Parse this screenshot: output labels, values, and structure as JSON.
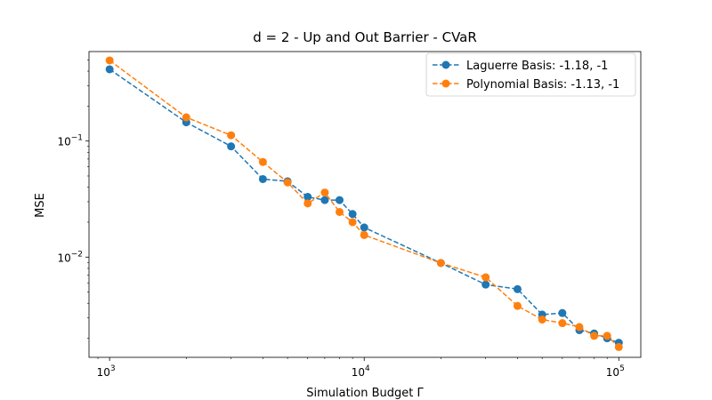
{
  "chart_data": {
    "type": "line",
    "title": "d = 2 - Up and Out Barrier - CVaR",
    "xlabel": "Simulation Budget Γ",
    "ylabel": "MSE",
    "x_scale": "log",
    "y_scale": "log",
    "xlim": [
      830,
      122000
    ],
    "ylim": [
      0.00137,
      0.59
    ],
    "x_ticks": [
      {
        "value": 1000,
        "base": "10",
        "exp": "3"
      },
      {
        "value": 10000,
        "base": "10",
        "exp": "4"
      },
      {
        "value": 100000,
        "base": "10",
        "exp": "5"
      }
    ],
    "y_ticks": [
      {
        "value": 0.01,
        "base": "10",
        "exp": "−2"
      },
      {
        "value": 0.1,
        "base": "10",
        "exp": "−1"
      }
    ],
    "grid": false,
    "legend_position": "top-right",
    "x": [
      1000,
      2000,
      3000,
      4000,
      5000,
      6000,
      7000,
      8000,
      9000,
      10000,
      20000,
      30000,
      40000,
      50000,
      60000,
      70000,
      80000,
      90000,
      100000
    ],
    "series": [
      {
        "name": "Laguerre Basis: -1.18, -1",
        "color": "#1f77b4",
        "values": [
          0.415,
          0.145,
          0.09,
          0.047,
          0.045,
          0.033,
          0.031,
          0.031,
          0.0235,
          0.018,
          0.0089,
          0.0058,
          0.0053,
          0.0032,
          0.0033,
          0.00235,
          0.0022,
          0.002,
          0.00183
        ]
      },
      {
        "name": "Polynomial Basis: -1.13, -1",
        "color": "#ff7f0e",
        "values": [
          0.495,
          0.16,
          0.112,
          0.066,
          0.044,
          0.029,
          0.036,
          0.0245,
          0.02,
          0.0155,
          0.0089,
          0.0067,
          0.0038,
          0.0029,
          0.0027,
          0.0025,
          0.0021,
          0.0021,
          0.00168
        ]
      }
    ]
  }
}
